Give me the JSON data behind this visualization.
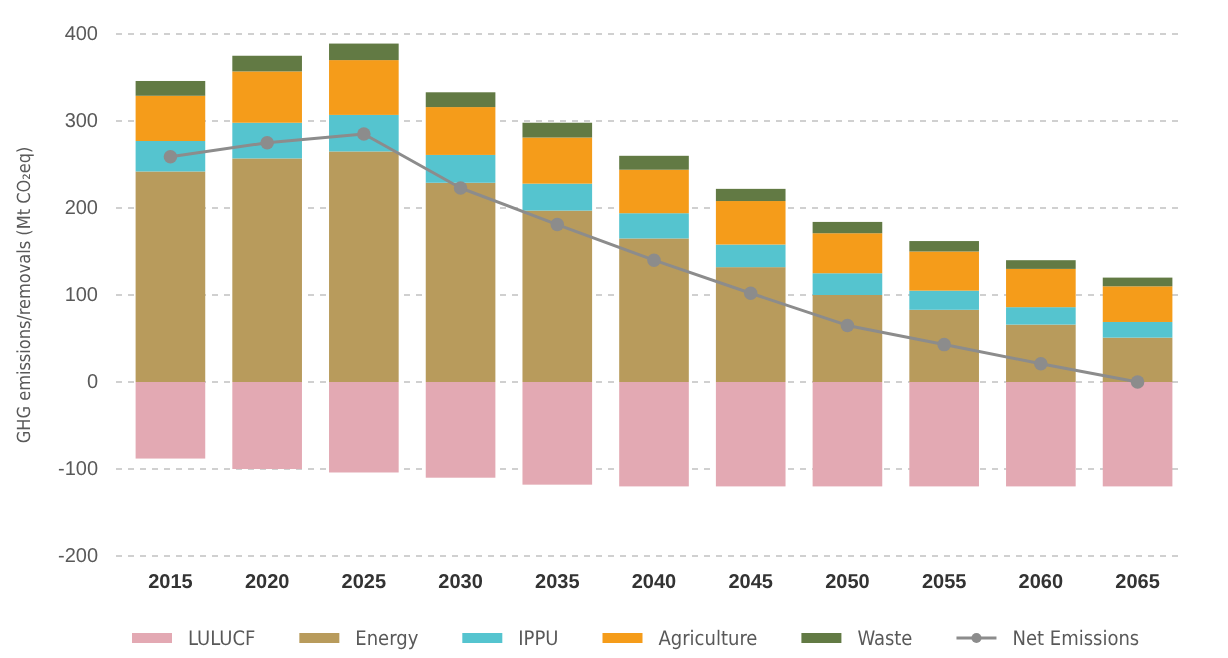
{
  "chart_data": {
    "type": "bar",
    "stacked": true,
    "ylabel": "GHG emissions/removals (Mt CO₂eq)",
    "categories": [
      "2015",
      "2020",
      "2025",
      "2030",
      "2035",
      "2040",
      "2045",
      "2050",
      "2055",
      "2060",
      "2065"
    ],
    "ylim": [
      -200,
      400
    ],
    "yticks": [
      -200,
      -100,
      0,
      100,
      200,
      300,
      400
    ],
    "grid": "y",
    "legend": "bottom",
    "series": [
      {
        "name": "LULUCF",
        "color": "#e3a9b3",
        "values": [
          -88,
          -100,
          -104,
          -110,
          -118,
          -120,
          -120,
          -120,
          -120,
          -120,
          -120
        ]
      },
      {
        "name": "Energy",
        "color": "#b89b5c",
        "values": [
          242,
          257,
          265,
          229,
          197,
          165,
          132,
          100,
          83,
          66,
          51
        ]
      },
      {
        "name": "IPPU",
        "color": "#55c4cf",
        "values": [
          35,
          41,
          42,
          32,
          31,
          29,
          26,
          25,
          22,
          20,
          18
        ]
      },
      {
        "name": "Agriculture",
        "color": "#f59c1a",
        "values": [
          52,
          59,
          63,
          55,
          53,
          50,
          50,
          46,
          45,
          44,
          41
        ]
      },
      {
        "name": "Waste",
        "color": "#627a44",
        "values": [
          17,
          18,
          19,
          17,
          17,
          16,
          14,
          13,
          12,
          10,
          10
        ]
      },
      {
        "name": "Net Emissions",
        "type": "line",
        "color": "#8c8c8c",
        "marker": "circle",
        "values": [
          259,
          275,
          285,
          223,
          181,
          140,
          102,
          65,
          43,
          21,
          0
        ]
      }
    ]
  }
}
